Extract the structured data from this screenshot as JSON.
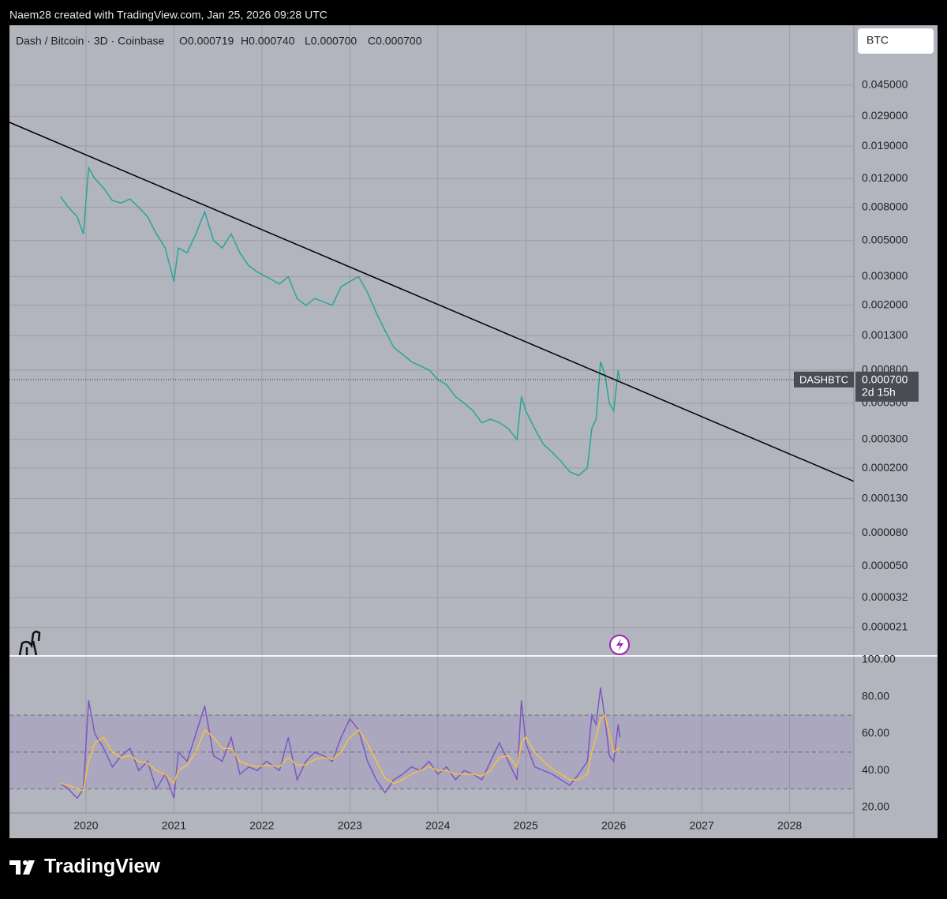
{
  "header": {
    "text": "Naem28 created with TradingView.com, Jan 25, 2026 09:28 UTC"
  },
  "legend": {
    "symbol": "Dash / Bitcoin · 3D · Coinbase",
    "ohlc": [
      "O0.000719",
      "H0.000740",
      "L0.000700",
      "C0.000700"
    ]
  },
  "currency": "BTC",
  "footer": {
    "brand": "TradingView"
  },
  "chart_data": [
    {
      "type": "line",
      "log_scale": true,
      "grid": true,
      "x": [
        2019.71,
        2019.8,
        2019.9,
        2019.97,
        2020.03,
        2020.1,
        2020.2,
        2020.3,
        2020.4,
        2020.5,
        2020.6,
        2020.7,
        2020.8,
        2020.9,
        2021.0,
        2021.05,
        2021.15,
        2021.25,
        2021.35,
        2021.45,
        2021.55,
        2021.65,
        2021.75,
        2021.85,
        2021.95,
        2022.05,
        2022.2,
        2022.3,
        2022.4,
        2022.5,
        2022.6,
        2022.7,
        2022.8,
        2022.9,
        2023.0,
        2023.1,
        2023.2,
        2023.3,
        2023.4,
        2023.5,
        2023.6,
        2023.7,
        2023.8,
        2023.9,
        2024.0,
        2024.1,
        2024.2,
        2024.3,
        2024.4,
        2024.5,
        2024.6,
        2024.7,
        2024.8,
        2024.9,
        2024.95,
        2025.0,
        2025.1,
        2025.2,
        2025.3,
        2025.4,
        2025.5,
        2025.6,
        2025.7,
        2025.75,
        2025.8,
        2025.85,
        2025.9,
        2025.95,
        2026.0,
        2026.05,
        2026.07
      ],
      "series": [
        {
          "name": "DASHBTC",
          "color": "#26a69a",
          "values": [
            0.0093,
            0.008,
            0.007,
            0.0055,
            0.014,
            0.012,
            0.0105,
            0.0088,
            0.0085,
            0.009,
            0.008,
            0.007,
            0.0055,
            0.0045,
            0.0028,
            0.0045,
            0.0042,
            0.0055,
            0.0075,
            0.005,
            0.0045,
            0.0055,
            0.0042,
            0.0035,
            0.0032,
            0.003,
            0.0027,
            0.003,
            0.0022,
            0.002,
            0.0022,
            0.0021,
            0.002,
            0.0026,
            0.0028,
            0.003,
            0.0024,
            0.0018,
            0.0014,
            0.0011,
            0.001,
            0.0009,
            0.00085,
            0.0008,
            0.0007,
            0.00065,
            0.00055,
            0.0005,
            0.00045,
            0.00038,
            0.0004,
            0.00038,
            0.00035,
            0.0003,
            0.00055,
            0.00045,
            0.00035,
            0.00028,
            0.00025,
            0.00022,
            0.00019,
            0.00018,
            0.0002,
            0.00035,
            0.0004,
            0.0009,
            0.00075,
            0.0005,
            0.00045,
            0.0008,
            0.0007
          ]
        }
      ],
      "trendline": {
        "x": [
          2019.13,
          2028.73
        ],
        "values": [
          0.0266,
          0.000166
        ],
        "color": "#000000"
      },
      "last_price": {
        "value": 0.0007,
        "label": "0.000700",
        "countdown": "2d 15h"
      },
      "xlim": [
        2019.13,
        2028.73
      ],
      "xticks": [
        2020,
        2021,
        2022,
        2023,
        2024,
        2025,
        2026,
        2027,
        2028
      ],
      "ylim": [
        1.42e-05,
        0.105
      ],
      "yticks": [
        {
          "value": 0.045,
          "label": "0.045000"
        },
        {
          "value": 0.029,
          "label": "0.029000"
        },
        {
          "value": 0.019,
          "label": "0.019000"
        },
        {
          "value": 0.012,
          "label": "0.012000"
        },
        {
          "value": 0.008,
          "label": "0.008000"
        },
        {
          "value": 0.005,
          "label": "0.005000"
        },
        {
          "value": 0.003,
          "label": "0.003000"
        },
        {
          "value": 0.002,
          "label": "0.002000"
        },
        {
          "value": 0.0013,
          "label": "0.001300"
        },
        {
          "value": 0.0008,
          "label": "0.000800"
        },
        {
          "value": 0.0005,
          "label": "0.000500"
        },
        {
          "value": 0.0003,
          "label": "0.000300"
        },
        {
          "value": 0.0002,
          "label": "0.000200"
        },
        {
          "value": 0.00013,
          "label": "0.000130"
        },
        {
          "value": 8e-05,
          "label": "0.000080"
        },
        {
          "value": 5e-05,
          "label": "0.000050"
        },
        {
          "value": 3.2e-05,
          "label": "0.000032"
        },
        {
          "value": 2.1e-05,
          "label": "0.000021"
        }
      ]
    },
    {
      "type": "line",
      "x": [
        2019.71,
        2019.8,
        2019.9,
        2019.97,
        2020.03,
        2020.1,
        2020.2,
        2020.3,
        2020.4,
        2020.5,
        2020.6,
        2020.7,
        2020.8,
        2020.9,
        2021.0,
        2021.05,
        2021.15,
        2021.25,
        2021.35,
        2021.45,
        2021.55,
        2021.65,
        2021.75,
        2021.85,
        2021.95,
        2022.05,
        2022.2,
        2022.3,
        2022.4,
        2022.5,
        2022.6,
        2022.7,
        2022.8,
        2022.9,
        2023.0,
        2023.1,
        2023.2,
        2023.3,
        2023.4,
        2023.5,
        2023.6,
        2023.7,
        2023.8,
        2023.9,
        2024.0,
        2024.1,
        2024.2,
        2024.3,
        2024.4,
        2024.5,
        2024.6,
        2024.7,
        2024.8,
        2024.9,
        2024.95,
        2025.0,
        2025.1,
        2025.2,
        2025.3,
        2025.4,
        2025.5,
        2025.6,
        2025.7,
        2025.75,
        2025.8,
        2025.85,
        2025.9,
        2025.95,
        2026.0,
        2026.05,
        2026.07
      ],
      "series": [
        {
          "color": "#7e57c2",
          "values": [
            33,
            30,
            25,
            30,
            78,
            60,
            52,
            42,
            48,
            52,
            40,
            45,
            30,
            38,
            25,
            50,
            45,
            60,
            75,
            48,
            45,
            58,
            38,
            42,
            40,
            45,
            40,
            58,
            35,
            45,
            50,
            48,
            45,
            58,
            68,
            62,
            45,
            35,
            28,
            35,
            38,
            42,
            40,
            45,
            38,
            42,
            35,
            40,
            38,
            35,
            45,
            55,
            45,
            35,
            78,
            55,
            42,
            40,
            38,
            35,
            32,
            38,
            45,
            70,
            65,
            85,
            68,
            48,
            45,
            65,
            58
          ]
        },
        {
          "color": "#f5c242",
          "values": [
            33,
            32,
            30,
            29,
            45,
            55,
            58,
            50,
            47,
            48,
            45,
            44,
            40,
            38,
            33,
            40,
            43,
            50,
            62,
            58,
            52,
            52,
            45,
            43,
            42,
            43,
            42,
            47,
            43,
            43,
            46,
            47,
            46,
            50,
            58,
            62,
            55,
            45,
            36,
            33,
            35,
            38,
            40,
            42,
            40,
            40,
            38,
            38,
            38,
            37,
            40,
            47,
            48,
            42,
            55,
            58,
            50,
            45,
            41,
            38,
            35,
            35,
            38,
            50,
            58,
            68,
            70,
            60,
            50,
            52,
            52
          ]
        }
      ],
      "band": [
        30,
        70
      ],
      "band_color": "#7e57c2",
      "levels": [
        30,
        50,
        70
      ],
      "ylim": [
        17,
        101.7
      ],
      "yticks": [
        {
          "value": 100,
          "label": "100.00"
        },
        {
          "value": 80,
          "label": "80.00"
        },
        {
          "value": 60,
          "label": "60.00"
        },
        {
          "value": 40,
          "label": "40.00"
        },
        {
          "value": 20,
          "label": "20.00"
        }
      ]
    }
  ]
}
